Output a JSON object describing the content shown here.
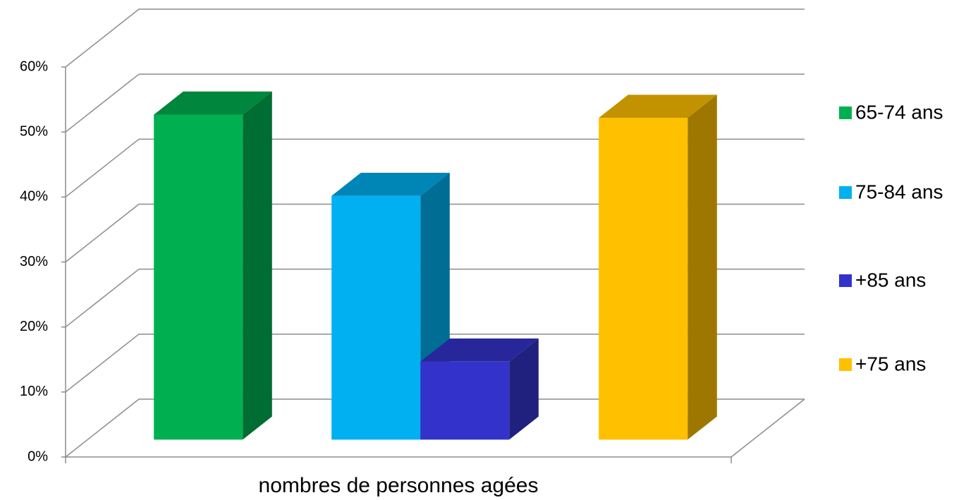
{
  "chart_data": {
    "type": "bar3d",
    "categories": [
      "nombres de personnes agées"
    ],
    "series": [
      {
        "name": "65-74 ans",
        "color": "#00b050",
        "values": [
          50
        ]
      },
      {
        "name": "75-84 ans",
        "color": "#00b0f0",
        "values": [
          37.5
        ]
      },
      {
        "name": "+85 ans",
        "color": "#3333cc",
        "values": [
          12
        ]
      },
      {
        "name": "+75 ans",
        "color": "#ffc000",
        "values": [
          49.5
        ]
      }
    ],
    "ylim": [
      0,
      60
    ],
    "yticks": [
      {
        "value": 0,
        "label": "0%"
      },
      {
        "value": 10,
        "label": "10%"
      },
      {
        "value": 20,
        "label": "20%"
      },
      {
        "value": 30,
        "label": "30%"
      },
      {
        "value": 40,
        "label": "40%"
      },
      {
        "value": 50,
        "label": "50%"
      },
      {
        "value": 60,
        "label": "60%"
      }
    ],
    "grid": true,
    "legend": "right"
  }
}
